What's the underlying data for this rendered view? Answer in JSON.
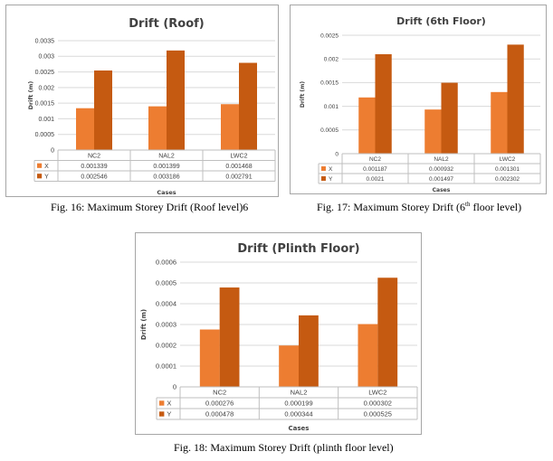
{
  "colors": {
    "x": "#ED7D31",
    "y": "#C55A11"
  },
  "chart_data": [
    {
      "id": "roof",
      "type": "bar",
      "title": "Drift (Roof)",
      "ylabel": "Drift (m)",
      "xlabel": "Cases",
      "categories": [
        "NC2",
        "NAL2",
        "LWC2"
      ],
      "yticks": [
        "0",
        "0.0005",
        "0.001",
        "0.0015",
        "0.002",
        "0.0025",
        "0.003",
        "0.0035"
      ],
      "ylim": [
        0,
        0.0035
      ],
      "grid": true,
      "legend": "data-table",
      "series": [
        {
          "name": "X",
          "values": [
            0.001339,
            0.001399,
            0.001468
          ],
          "labels": [
            "0.001339",
            "0.001399",
            "0.001468"
          ]
        },
        {
          "name": "Y",
          "values": [
            0.002546,
            0.003186,
            0.002791
          ],
          "labels": [
            "0.002546",
            "0.003186",
            "0.002791"
          ]
        }
      ]
    },
    {
      "id": "sixth",
      "type": "bar",
      "title": "Drift (6th Floor)",
      "ylabel": "Drift (m)",
      "xlabel": "Cases",
      "categories": [
        "NC2",
        "NAL2",
        "LWC2"
      ],
      "yticks": [
        "0",
        "0.0005",
        "0.001",
        "0.0015",
        "0.002",
        "0.0025"
      ],
      "ylim": [
        0,
        0.0025
      ],
      "grid": true,
      "legend": "data-table",
      "series": [
        {
          "name": "X",
          "values": [
            0.001187,
            0.000932,
            0.001301
          ],
          "labels": [
            "0.001187",
            "0.000932",
            "0.001301"
          ]
        },
        {
          "name": "Y",
          "values": [
            0.0021,
            0.001497,
            0.002302
          ],
          "labels": [
            "0.0021",
            "0.001497",
            "0.002302"
          ]
        }
      ]
    },
    {
      "id": "plinth",
      "type": "bar",
      "title": "Drift (Plinth Floor)",
      "ylabel": "Drift (m)",
      "xlabel": "Cases",
      "categories": [
        "NC2",
        "NAL2",
        "LWC2"
      ],
      "yticks": [
        "0",
        "0.0001",
        "0.0002",
        "0.0003",
        "0.0004",
        "0.0005",
        "0.0006"
      ],
      "ylim": [
        0,
        0.0006
      ],
      "grid": true,
      "legend": "data-table",
      "series": [
        {
          "name": "X",
          "values": [
            0.000276,
            0.000199,
            0.000302
          ],
          "labels": [
            "0.000276",
            "0.000199",
            "0.000302"
          ]
        },
        {
          "name": "Y",
          "values": [
            0.000478,
            0.000344,
            0.000525
          ],
          "labels": [
            "0.000478",
            "0.000344",
            "0.000525"
          ]
        }
      ]
    }
  ],
  "captions": {
    "fig16": "Fig. 16: Maximum Storey Drift (Roof level)6",
    "fig17_pre": "Fig. 17: Maximum Storey Drift (6",
    "fig17_sup": "th",
    "fig17_post": " floor level)",
    "fig18": "Fig. 18: Maximum Storey Drift (plinth floor level)"
  }
}
